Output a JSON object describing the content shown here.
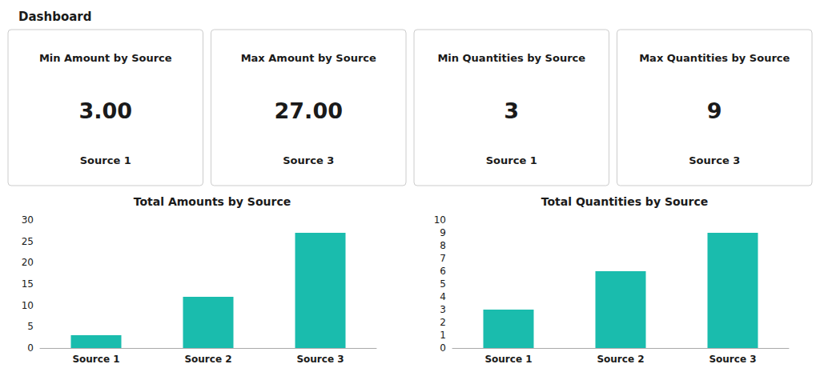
{
  "title": "Dashboard",
  "annotations": [
    [
      "Min Amount by Source",
      "3.00",
      "Source 1"
    ],
    [
      "Max Amount by Source",
      "27.00",
      "Source 3"
    ],
    [
      "Min Quantities by Source",
      "3",
      "Source 1"
    ],
    [
      "Max Quantities by Source",
      "9",
      "Source 3"
    ]
  ],
  "chart_data": [
    {
      "type": "bar",
      "title": "Total Amounts by Source",
      "categories": [
        "Source 1",
        "Source 2",
        "Source 3"
      ],
      "values": [
        3,
        12,
        27
      ],
      "color": "#1ABCAD",
      "ylim": [
        0,
        30
      ],
      "yticks": [
        0,
        5,
        10,
        15,
        20,
        25,
        30
      ],
      "grid": false
    },
    {
      "type": "bar",
      "title": "Total Quantities by Source",
      "categories": [
        "Source 1",
        "Source 2",
        "Source 3"
      ],
      "values": [
        3,
        6,
        9
      ],
      "color": "#1ABCAD",
      "ylim": [
        0,
        10
      ],
      "yticks": [
        0,
        1,
        2,
        3,
        4,
        5,
        6,
        7,
        8,
        9,
        10
      ],
      "grid": false
    }
  ]
}
